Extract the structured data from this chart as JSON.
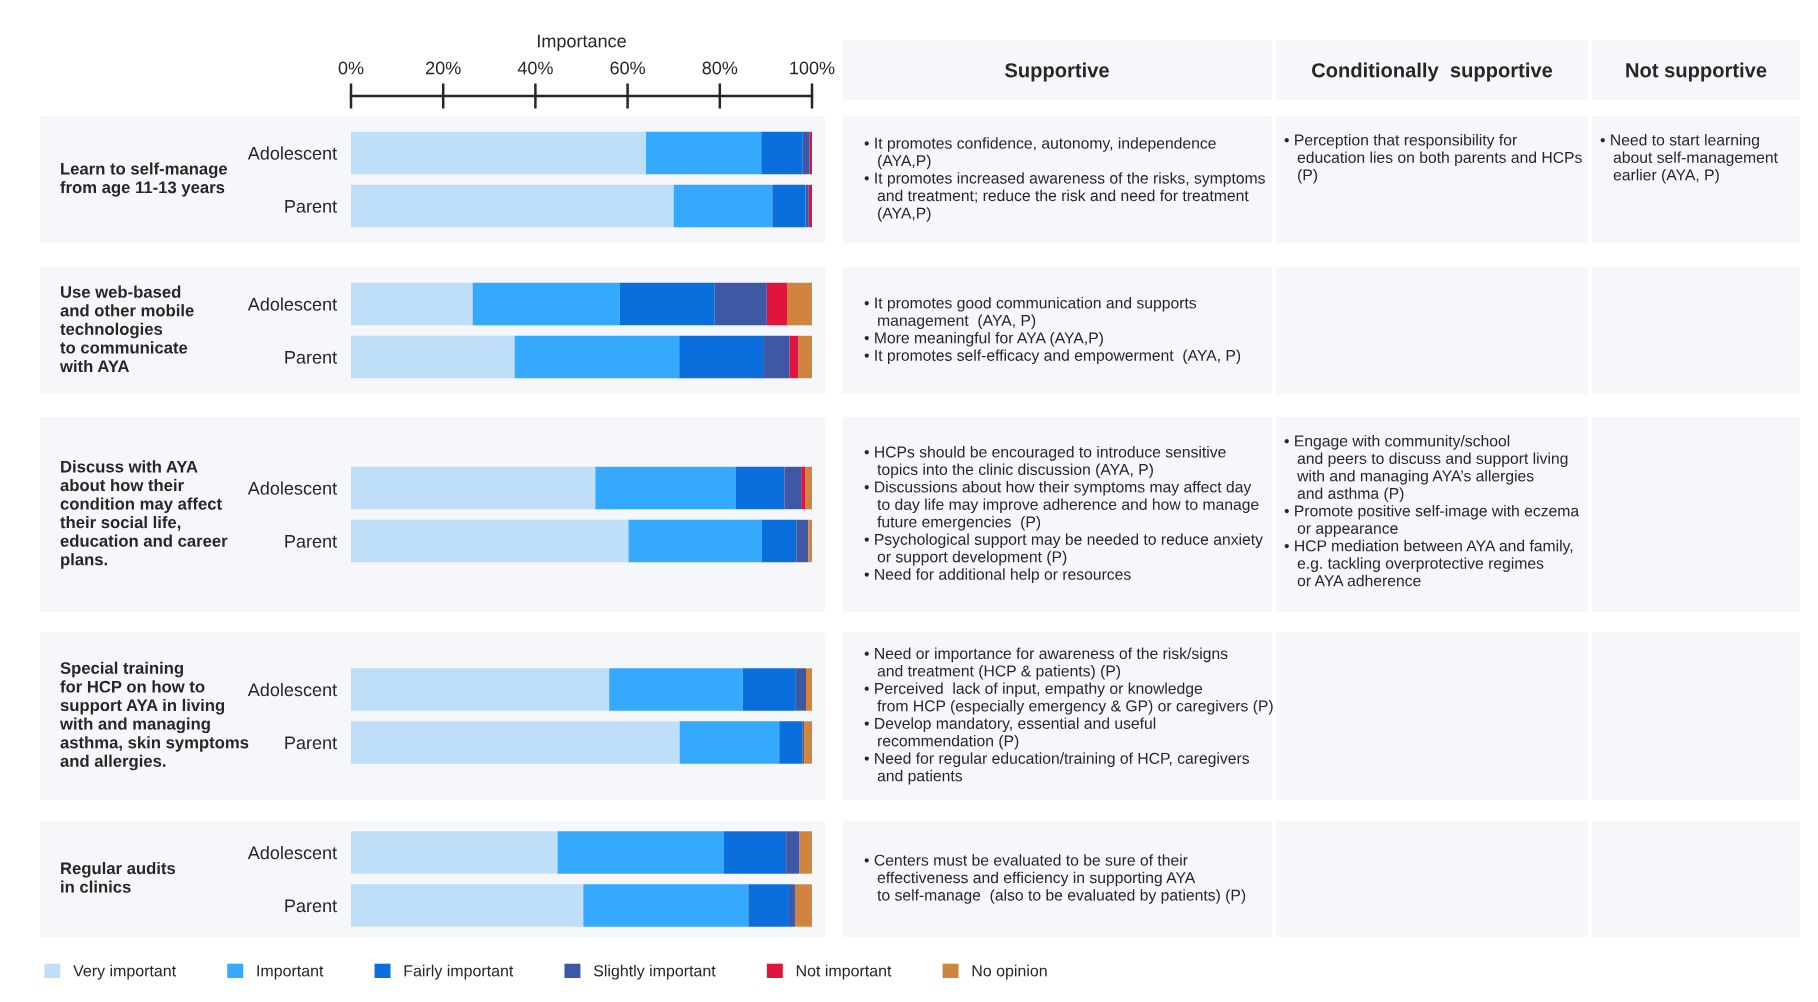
{
  "chart_data": [
    {
      "type": "bar",
      "title": "Learn to self-manage\nfrom age 11-13 years",
      "xlabel": "Importance",
      "orientation": "horizontal",
      "stacked": true,
      "categories": [
        "Adolescent",
        "Parent"
      ],
      "xlim": [
        0,
        100
      ],
      "xticks": [
        {
          "value": 0,
          "label": "0%"
        },
        {
          "value": 20,
          "label": "20%"
        },
        {
          "value": 40,
          "label": "40%"
        },
        {
          "value": 60,
          "label": "60%"
        },
        {
          "value": 80,
          "label": "80%"
        },
        {
          "value": 100,
          "label": "100%"
        }
      ],
      "series": [
        {
          "color": "#bfdff9",
          "values": [
            64,
            70
          ]
        },
        {
          "color": "#35a9fb",
          "values": [
            25,
            21.4
          ]
        },
        {
          "color": "#0a6fdc",
          "values": [
            9,
            7.2
          ]
        },
        {
          "color": "#3e58a6",
          "values": [
            1.5,
            0.7
          ]
        },
        {
          "color": "#e0143c",
          "values": [
            0.5,
            0.7
          ]
        },
        {
          "color": "#d0853e",
          "values": [
            0,
            0
          ]
        }
      ],
      "annotations": [
        "• It promotes confidence, autonomy, independence\n   (AYA,P)\n• It promotes increased awareness of the risks, symptoms\n   and treatment; reduce the risk and need for treatment\n   (AYA,P)",
        "• Perception that responsibility for\n   education lies on both parents and HCPs\n   (P)",
        "• Need to start learning\n   about self-management\n   earlier (AYA, P)"
      ]
    },
    {
      "type": "bar",
      "title": "Use web-based\nand other mobile\ntechnologies\nto communicate\nwith AYA",
      "orientation": "horizontal",
      "stacked": true,
      "tick_labels": "y",
      "categories": [
        "Adolescent",
        "Parent"
      ],
      "xlim": [
        0,
        100
      ],
      "series": [
        {
          "color": "#bfdff9",
          "values": [
            26.4,
            35.5
          ]
        },
        {
          "color": "#35a9fb",
          "values": [
            31.9,
            35.7
          ]
        },
        {
          "color": "#0a6fdc",
          "values": [
            20.6,
            18.4
          ]
        },
        {
          "color": "#3e58a6",
          "values": [
            11.3,
            5.5
          ]
        },
        {
          "color": "#e0143c",
          "values": [
            4.5,
            2.0
          ]
        },
        {
          "color": "#d0853e",
          "values": [
            5.3,
            2.9
          ]
        }
      ],
      "annotations": [
        "• It promotes good communication and supports\n   management  (AYA, P)\n• More meaningful for AYA (AYA,P)\n• It promotes self-efficacy and empowerment  (AYA, P)"
      ]
    },
    {
      "type": "bar",
      "title": "Discuss with AYA\nabout how their\ncondition may affect\ntheir social life,\neducation and career\nplans.",
      "orientation": "horizontal",
      "stacked": true,
      "tick_labels": "y",
      "categories": [
        "Adolescent",
        "Parent"
      ],
      "xlim": [
        0,
        100
      ],
      "series": [
        {
          "color": "#bfdff9",
          "values": [
            53.0,
            60.2
          ]
        },
        {
          "color": "#35a9fb",
          "values": [
            30.5,
            28.9
          ]
        },
        {
          "color": "#0a6fdc",
          "values": [
            10.5,
            7.5
          ]
        },
        {
          "color": "#3e58a6",
          "values": [
            3.8,
            2.6
          ]
        },
        {
          "color": "#e0143c",
          "values": [
            0.8,
            0
          ]
        },
        {
          "color": "#d0853e",
          "values": [
            1.4,
            0.8
          ]
        }
      ],
      "annotations": [
        "• HCPs should be encouraged to introduce sensitive\n   topics into the clinic discussion (AYA, P)\n• Discussions about how their symptoms may affect day\n   to day life may improve adherence and how to manage\n   future emergencies  (P)\n• Psychological support may be needed to reduce anxiety\n   or support development (P)\n• Need for additional help or resources",
        "• Engage with community/school\n   and peers to discuss and support living\n   with and managing AYA’s allergies\n   and asthma (P)\n• Promote positive self-image with eczema\n   or appearance\n• HCP mediation between AYA and family,\n   e.g. tackling overprotective regimes\n   or AYA adherence"
      ]
    },
    {
      "type": "bar",
      "title": "Special training\nfor HCP on how to\nsupport AYA in living\nwith and managing\nasthma, skin symptoms\nand allergies.",
      "orientation": "horizontal",
      "stacked": true,
      "tick_labels": "y",
      "categories": [
        "Adolescent",
        "Parent"
      ],
      "xlim": [
        0,
        100
      ],
      "series": [
        {
          "color": "#bfdff9",
          "values": [
            56,
            71.3
          ]
        },
        {
          "color": "#35a9fb",
          "values": [
            29,
            21.6
          ]
        },
        {
          "color": "#0a6fdc",
          "values": [
            11.5,
            5
          ]
        },
        {
          "color": "#3e58a6",
          "values": [
            2.2,
            0.4
          ]
        },
        {
          "color": "#e0143c",
          "values": [
            0,
            0
          ]
        },
        {
          "color": "#d0853e",
          "values": [
            1.3,
            1.7
          ]
        }
      ],
      "annotations": [
        "• Need or importance for awareness of the risk/signs\n   and treatment (HCP & patients) (P)\n• Perceived  lack of input, empathy or knowledge\n   from HCP (especially emergency & GP) or caregivers (P)\n• Develop mandatory, essential and useful\n   recommendation (P)\n• Need for regular education/training of HCP, caregivers\n   and patients"
      ]
    },
    {
      "type": "bar",
      "title": "Regular audits\nin clinics",
      "orientation": "horizontal",
      "stacked": true,
      "tick_labels": "y",
      "legend": "bottom",
      "categories": [
        "Adolescent",
        "Parent"
      ],
      "xlim": [
        0,
        100
      ],
      "series": [
        {
          "name": "Very important",
          "color": "#bfdff9",
          "values": [
            44.8,
            50.4
          ]
        },
        {
          "name": "Important",
          "color": "#35a9fb",
          "values": [
            36.0,
            35.8
          ]
        },
        {
          "name": "Fairly important",
          "color": "#0a6fdc",
          "values": [
            13.6,
            8.8
          ]
        },
        {
          "name": "Slightly important",
          "color": "#3e58a6",
          "values": [
            2.8,
            1.3
          ]
        },
        {
          "name": "Not important",
          "color": "#e0143c",
          "values": [
            0,
            0
          ]
        },
        {
          "name": "No opinion",
          "color": "#d0853e",
          "values": [
            2.8,
            3.7
          ]
        }
      ],
      "annotations": [
        "• Centers must be evaluated to be sure of their\n   effectiveness and efficiency in supporting AYA\n   to self-manage  (also to be evaluated by patients) (P)"
      ]
    },
    {
      "type": "other",
      "annotations": [
        "Supportive",
        "Conditionally  supportive",
        "Not supportive"
      ]
    }
  ]
}
